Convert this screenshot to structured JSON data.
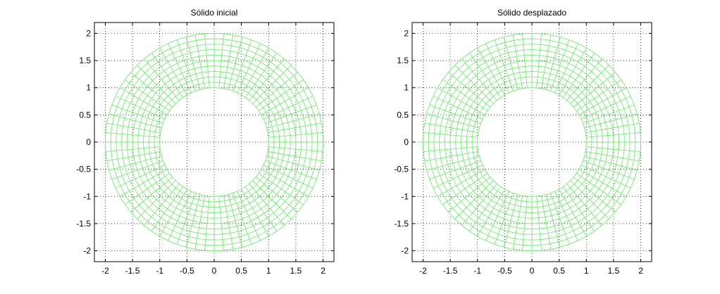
{
  "chart_data": [
    {
      "type": "mesh",
      "title": "Sólido inicial",
      "xlim": [
        -2.2,
        2.2
      ],
      "ylim": [
        -2.2,
        2.2
      ],
      "xticks": [
        -2,
        -1.5,
        -1,
        -0.5,
        0,
        0.5,
        1,
        1.5,
        2
      ],
      "xtick_labels": [
        "-2",
        "-1.5",
        "-1",
        "-0.5",
        "0",
        "0.5",
        "1",
        "1.5",
        "2"
      ],
      "yticks": [
        2,
        1.5,
        1,
        0.5,
        0,
        -0.5,
        -1,
        -1.5,
        -2
      ],
      "ytick_labels": [
        "2",
        "1.5",
        "1",
        "0.5",
        "0",
        "-0.5",
        "-1",
        "-1.5",
        "-2"
      ],
      "grid": "dotted",
      "mesh": {
        "shape": "annulus",
        "center": [
          0,
          0
        ],
        "inner_radius": 1,
        "outer_radius": 2,
        "radial_divisions": 10,
        "angular_divisions": 72,
        "color": "#66e866"
      }
    },
    {
      "type": "mesh",
      "title": "Sólido desplazado",
      "xlim": [
        -2.2,
        2.2
      ],
      "ylim": [
        -2.2,
        2.2
      ],
      "xticks": [
        -2,
        -1.5,
        -1,
        -0.5,
        0,
        0.5,
        1,
        1.5,
        2
      ],
      "xtick_labels": [
        "-2",
        "-1.5",
        "-1",
        "-0.5",
        "0",
        "0.5",
        "1",
        "1.5",
        "2"
      ],
      "yticks": [
        2,
        1.5,
        1,
        0.5,
        0,
        -0.5,
        -1,
        -1.5,
        -2
      ],
      "ytick_labels": [
        "2",
        "1.5",
        "1",
        "0.5",
        "0",
        "-0.5",
        "-1",
        "-1.5",
        "-2"
      ],
      "grid": "dotted",
      "mesh": {
        "shape": "annulus",
        "center": [
          0,
          0
        ],
        "inner_radius": 1,
        "outer_radius": 2,
        "radial_divisions": 10,
        "angular_divisions": 72,
        "color": "#66e866"
      }
    }
  ]
}
